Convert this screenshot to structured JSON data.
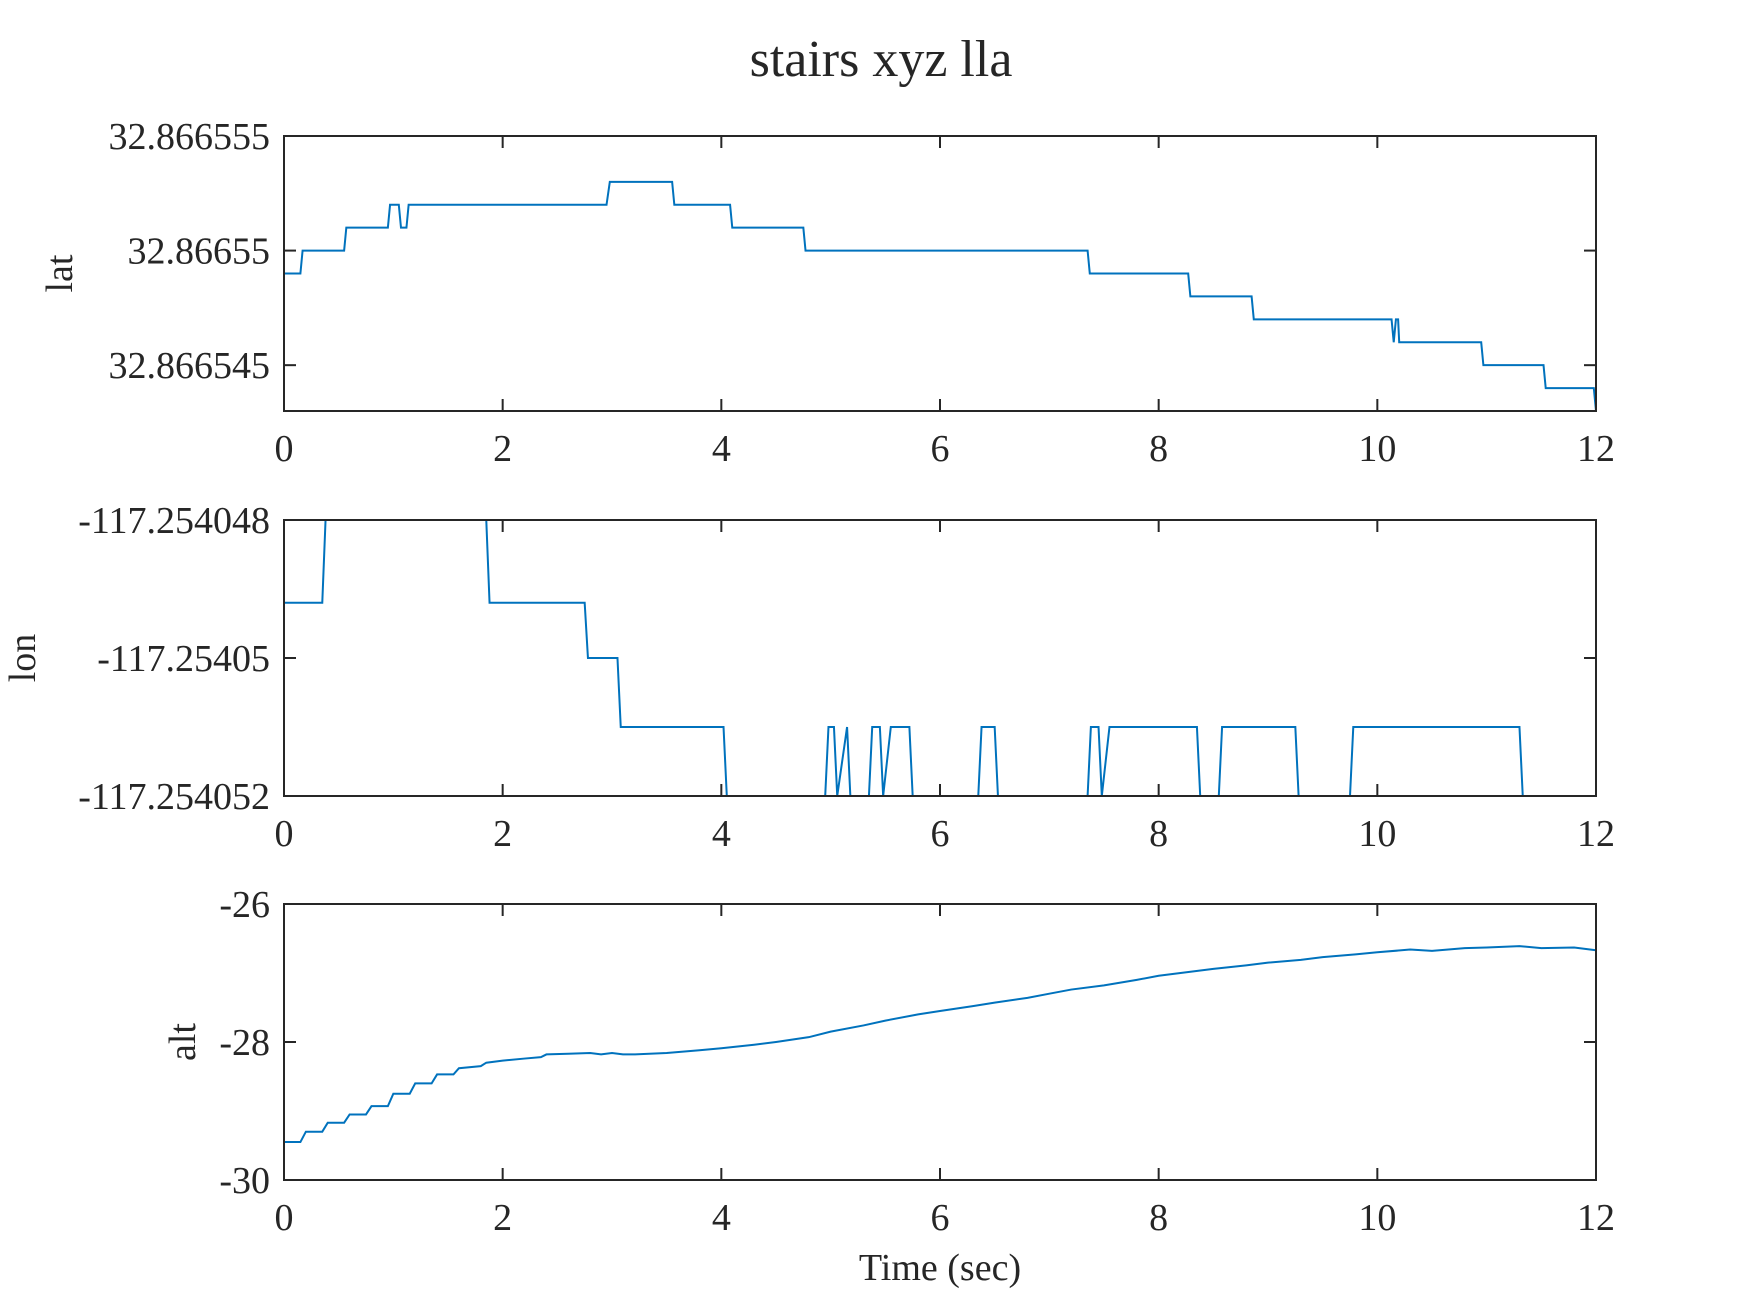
{
  "chart_data": {
    "type": "line",
    "title": "stairs xyz lla",
    "color": "#0072BD",
    "shared_xlabel": "Time (sec)",
    "subplots": [
      {
        "type": "line",
        "ylabel": "lat",
        "xlabel": "",
        "xlim": [
          0,
          12
        ],
        "ylim": [
          32.866543,
          32.866555
        ],
        "xticks": [
          "0",
          "2",
          "4",
          "6",
          "8",
          "10",
          "12"
        ],
        "yticks": [
          {
            "value": 32.866555,
            "label": "32.866555"
          },
          {
            "value": 32.86655,
            "label": "32.86655"
          },
          {
            "value": 32.866545,
            "label": "32.866545"
          }
        ],
        "series": [
          {
            "x": [
              0,
              0.15,
              0.17,
              0.55,
              0.57,
              0.95,
              0.97,
              1.05,
              1.07,
              1.12,
              1.14,
              2.95,
              2.98,
              3.55,
              3.57,
              4.08,
              4.1,
              4.75,
              4.77,
              7.35,
              7.37,
              8.27,
              8.29,
              8.85,
              8.87,
              10.13,
              10.15,
              10.17,
              10.19,
              10.2,
              10.22,
              10.95,
              10.97,
              11.52,
              11.54,
              11.98,
              12.0
            ],
            "y": [
              32.866549,
              32.866549,
              32.86655,
              32.86655,
              32.866551,
              32.866551,
              32.866552,
              32.866552,
              32.866551,
              32.866551,
              32.866552,
              32.866552,
              32.866553,
              32.866553,
              32.866552,
              32.866552,
              32.866551,
              32.866551,
              32.86655,
              32.86655,
              32.866549,
              32.866549,
              32.866548,
              32.866548,
              32.866547,
              32.866547,
              32.866546,
              32.866547,
              32.866547,
              32.866546,
              32.866546,
              32.866546,
              32.866545,
              32.866545,
              32.866544,
              32.866544,
              32.866543
            ]
          }
        ]
      },
      {
        "type": "line",
        "ylabel": "lon",
        "xlabel": "",
        "xlim": [
          0,
          12
        ],
        "ylim": [
          -117.254052,
          -117.254048
        ],
        "xticks": [
          "0",
          "2",
          "4",
          "6",
          "8",
          "10",
          "12"
        ],
        "yticks": [
          {
            "value": -117.254048,
            "label": "-117.254048"
          },
          {
            "value": -117.25405,
            "label": "-117.25405"
          },
          {
            "value": -117.254052,
            "label": "-117.254052"
          }
        ],
        "series": [
          {
            "x": [
              0,
              0.35,
              0.38,
              1.85,
              1.88,
              2.75,
              2.78,
              3.05,
              3.08,
              4.02,
              4.05,
              4.95,
              4.98,
              5.03,
              5.06,
              5.15,
              5.18,
              5.35,
              5.38,
              5.45,
              5.48,
              5.55,
              5.58,
              5.72,
              5.75,
              6.35,
              6.38,
              6.5,
              6.53,
              7.35,
              7.38,
              7.45,
              7.48,
              7.55,
              7.58,
              8.35,
              8.38,
              8.55,
              8.58,
              9.25,
              9.28,
              9.75,
              9.78,
              11.3,
              11.33,
              12.0
            ],
            "y": [
              -117.2540492,
              -117.2540492,
              -117.254048,
              -117.254048,
              -117.2540492,
              -117.2540492,
              -117.25405,
              -117.25405,
              -117.254051,
              -117.254051,
              -117.254052,
              -117.254052,
              -117.254051,
              -117.254051,
              -117.254052,
              -117.254051,
              -117.254052,
              -117.254052,
              -117.254051,
              -117.254051,
              -117.254052,
              -117.254051,
              -117.254051,
              -117.254051,
              -117.254052,
              -117.254052,
              -117.254051,
              -117.254051,
              -117.254052,
              -117.254052,
              -117.254051,
              -117.254051,
              -117.254052,
              -117.254051,
              -117.254051,
              -117.254051,
              -117.254052,
              -117.254052,
              -117.254051,
              -117.254051,
              -117.254052,
              -117.254052,
              -117.254051,
              -117.254051,
              -117.254052,
              -117.254052
            ]
          }
        ]
      },
      {
        "type": "line",
        "ylabel": "alt",
        "xlabel": "Time (sec)",
        "xlim": [
          0,
          12
        ],
        "ylim": [
          -30,
          -26
        ],
        "xticks": [
          "0",
          "2",
          "4",
          "6",
          "8",
          "10",
          "12"
        ],
        "yticks": [
          {
            "value": -26,
            "label": "-26"
          },
          {
            "value": -28,
            "label": "-28"
          },
          {
            "value": -30,
            "label": "-30"
          }
        ],
        "series": [
          {
            "x": [
              0,
              0.15,
              0.2,
              0.35,
              0.4,
              0.55,
              0.6,
              0.75,
              0.8,
              0.95,
              1.0,
              1.15,
              1.2,
              1.35,
              1.4,
              1.55,
              1.6,
              1.8,
              1.85,
              2.0,
              2.2,
              2.35,
              2.4,
              2.6,
              2.8,
              2.9,
              3.0,
              3.1,
              3.2,
              3.5,
              3.8,
              4.0,
              4.3,
              4.5,
              4.8,
              5.0,
              5.3,
              5.5,
              5.8,
              6.0,
              6.3,
              6.5,
              6.8,
              7.0,
              7.2,
              7.5,
              7.8,
              8.0,
              8.3,
              8.5,
              8.8,
              9.0,
              9.3,
              9.5,
              9.8,
              10.0,
              10.3,
              10.5,
              10.8,
              11.0,
              11.3,
              11.5,
              11.8,
              12.0
            ],
            "y": [
              -29.45,
              -29.45,
              -29.3,
              -29.3,
              -29.17,
              -29.17,
              -29.05,
              -29.05,
              -28.93,
              -28.93,
              -28.75,
              -28.75,
              -28.6,
              -28.6,
              -28.47,
              -28.47,
              -28.38,
              -28.35,
              -28.3,
              -28.27,
              -28.24,
              -28.22,
              -28.18,
              -28.17,
              -28.16,
              -28.18,
              -28.16,
              -28.18,
              -28.18,
              -28.16,
              -28.12,
              -28.09,
              -28.04,
              -28.0,
              -27.93,
              -27.85,
              -27.76,
              -27.69,
              -27.6,
              -27.55,
              -27.48,
              -27.43,
              -27.36,
              -27.3,
              -27.24,
              -27.18,
              -27.1,
              -27.04,
              -26.98,
              -26.94,
              -26.89,
              -26.85,
              -26.81,
              -26.77,
              -26.73,
              -26.7,
              -26.66,
              -26.68,
              -26.64,
              -26.63,
              -26.61,
              -26.64,
              -26.63,
              -26.67
            ]
          }
        ]
      }
    ]
  }
}
